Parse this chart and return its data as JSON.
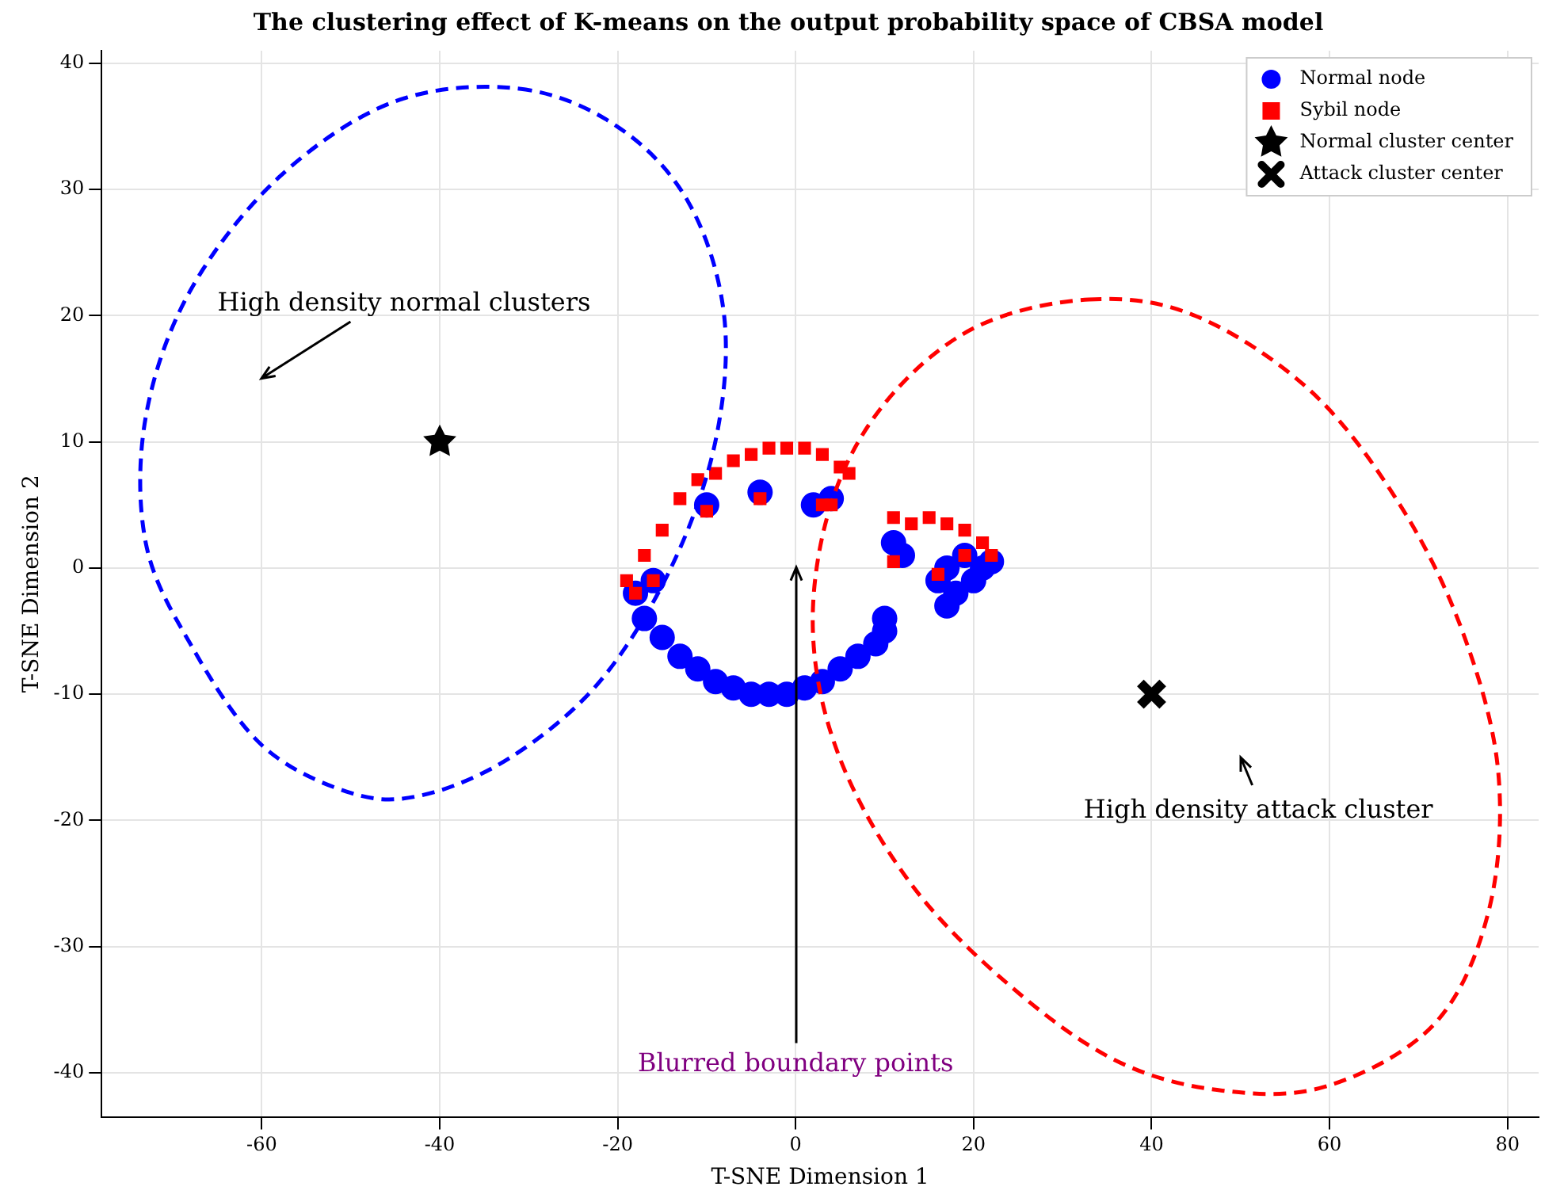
{
  "chart_data": {
    "type": "scatter",
    "title": "The clustering effect of K-means on the output probability space of CBSA model",
    "xlabel": "T-SNE Dimension 1",
    "ylabel": "T-SNE Dimension 2",
    "xlim": [
      -78,
      83.5
    ],
    "ylim": [
      -43.5,
      41
    ],
    "xticks": [
      -60,
      -40,
      -20,
      0,
      20,
      40,
      60,
      80
    ],
    "yticks": [
      -40,
      -30,
      -20,
      -10,
      0,
      10,
      20,
      30,
      40
    ],
    "grid": true,
    "legend": "top right",
    "series": [
      {
        "name": "Normal node",
        "type": "scatter",
        "marker": "circle",
        "color": "#0000ff",
        "x": [
          -18,
          -17,
          -15,
          -13,
          -11,
          -9,
          -7,
          -5,
          -3,
          -1,
          1,
          3,
          5,
          7,
          9,
          10,
          10,
          -16,
          -10,
          -4,
          2,
          4,
          11,
          12,
          16,
          17,
          19,
          17,
          18,
          20,
          21,
          22
        ],
        "values": [
          -2,
          -4,
          -5.5,
          -7,
          -8,
          -9,
          -9.5,
          -10,
          -10,
          -10,
          -9.5,
          -9,
          -8,
          -7,
          -6,
          -5,
          -4,
          -1,
          5,
          6,
          5,
          5.5,
          2,
          1,
          -1,
          0,
          1,
          -3,
          -2,
          -1,
          0,
          0.5
        ]
      },
      {
        "name": "Sybil node",
        "type": "scatter",
        "marker": "square",
        "color": "#ff0000",
        "x": [
          -19,
          -17,
          -15,
          -13,
          -11,
          -9,
          -7,
          -5,
          -3,
          -1,
          1,
          3,
          5,
          6,
          11,
          13,
          15,
          17,
          19,
          21,
          22,
          -18,
          -16,
          -10,
          -4,
          3,
          4,
          11,
          16,
          19
        ],
        "values": [
          -1,
          1,
          3,
          5.5,
          7,
          7.5,
          8.5,
          9,
          9.5,
          9.5,
          9.5,
          9,
          8,
          7.5,
          4,
          3.5,
          4,
          3.5,
          3,
          2,
          1,
          -2,
          -1,
          4.5,
          5.5,
          5,
          5,
          0.5,
          -0.5,
          1
        ]
      },
      {
        "name": "Normal cluster center",
        "type": "scatter",
        "marker": "star",
        "color": "#000000",
        "x": [
          -40
        ],
        "values": [
          10
        ]
      },
      {
        "name": "Attack cluster center",
        "type": "scatter",
        "marker": "cross",
        "color": "#000000",
        "x": [
          40
        ],
        "values": [
          -10
        ]
      }
    ],
    "annotations": [
      "High density normal clusters",
      "High density attack cluster",
      "Blurred boundary points"
    ]
  }
}
